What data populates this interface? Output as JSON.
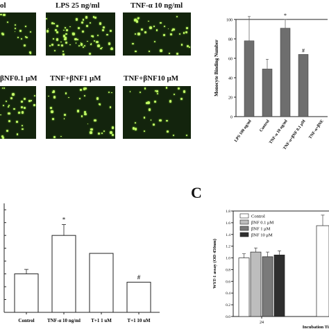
{
  "micrographs": {
    "row1": [
      "ol",
      "LPS 25 ng/ml",
      "TNF-α 10 ng/ml"
    ],
    "row2": [
      "βNF0.1 μM",
      "TNF+βNF1 μM",
      "TNF+βNF10 μM"
    ]
  },
  "panel_c_letter": "C",
  "chart_data": [
    {
      "id": "monocyte_binding",
      "type": "bar",
      "categories": [
        "LPS 100 ng/ml",
        "Control",
        "TNF-α 10 ng/ml",
        "TNF-α+βNF 0.1 μM",
        "TNF-α+βNE"
      ],
      "values": [
        78,
        49,
        91,
        64,
        null
      ],
      "errors": [
        25,
        10,
        9,
        0,
        null
      ],
      "annotations": [
        "",
        "",
        "*",
        "#",
        ""
      ],
      "ylabel": "Monocyte Binding Number",
      "yticks": [
        "0",
        "20",
        "40",
        "60",
        "80",
        "100"
      ],
      "ylim": [
        0,
        100
      ]
    },
    {
      "id": "panel_b",
      "type": "bar",
      "categories": [
        "Control",
        "TNF-α 10 ng/ml",
        "T+1  1 uM",
        "T+1  10 uM"
      ],
      "values": [
        0.6,
        1.2,
        0.92,
        0.47
      ],
      "errors": [
        0.07,
        0.17,
        0.0,
        0.0
      ],
      "annotations": [
        "",
        "*",
        "",
        "#"
      ],
      "ylim": [
        0,
        1.7
      ]
    },
    {
      "id": "wst1",
      "type": "bar",
      "xlabel": "Incubation Time (hou",
      "ylabel": "WST-1 assay (OD 450nm)",
      "yticks": [
        "0.0",
        "0.2",
        "0.4",
        "0.6",
        "0.8",
        "1.0",
        "1.2",
        "1.4",
        "1.6",
        "1.8"
      ],
      "ylim": [
        0,
        1.8
      ],
      "categories": [
        "24"
      ],
      "series": [
        {
          "name": "Control",
          "values": [
            1.0
          ],
          "errors": [
            0.07
          ],
          "color": "#ffffff"
        },
        {
          "name": "βNF 0.1 μM",
          "values": [
            1.1
          ],
          "errors": [
            0.07
          ],
          "color": "#bdbdbd"
        },
        {
          "name": "βNF 1 μM",
          "values": [
            1.02
          ],
          "errors": [
            0.08
          ],
          "color": "#7a7a7a"
        },
        {
          "name": "βNF 10 μM",
          "values": [
            1.05
          ],
          "errors": [
            0.07
          ],
          "color": "#2e2e2e"
        }
      ],
      "extra_bar": {
        "value": 1.55,
        "error": 0.18
      }
    }
  ]
}
